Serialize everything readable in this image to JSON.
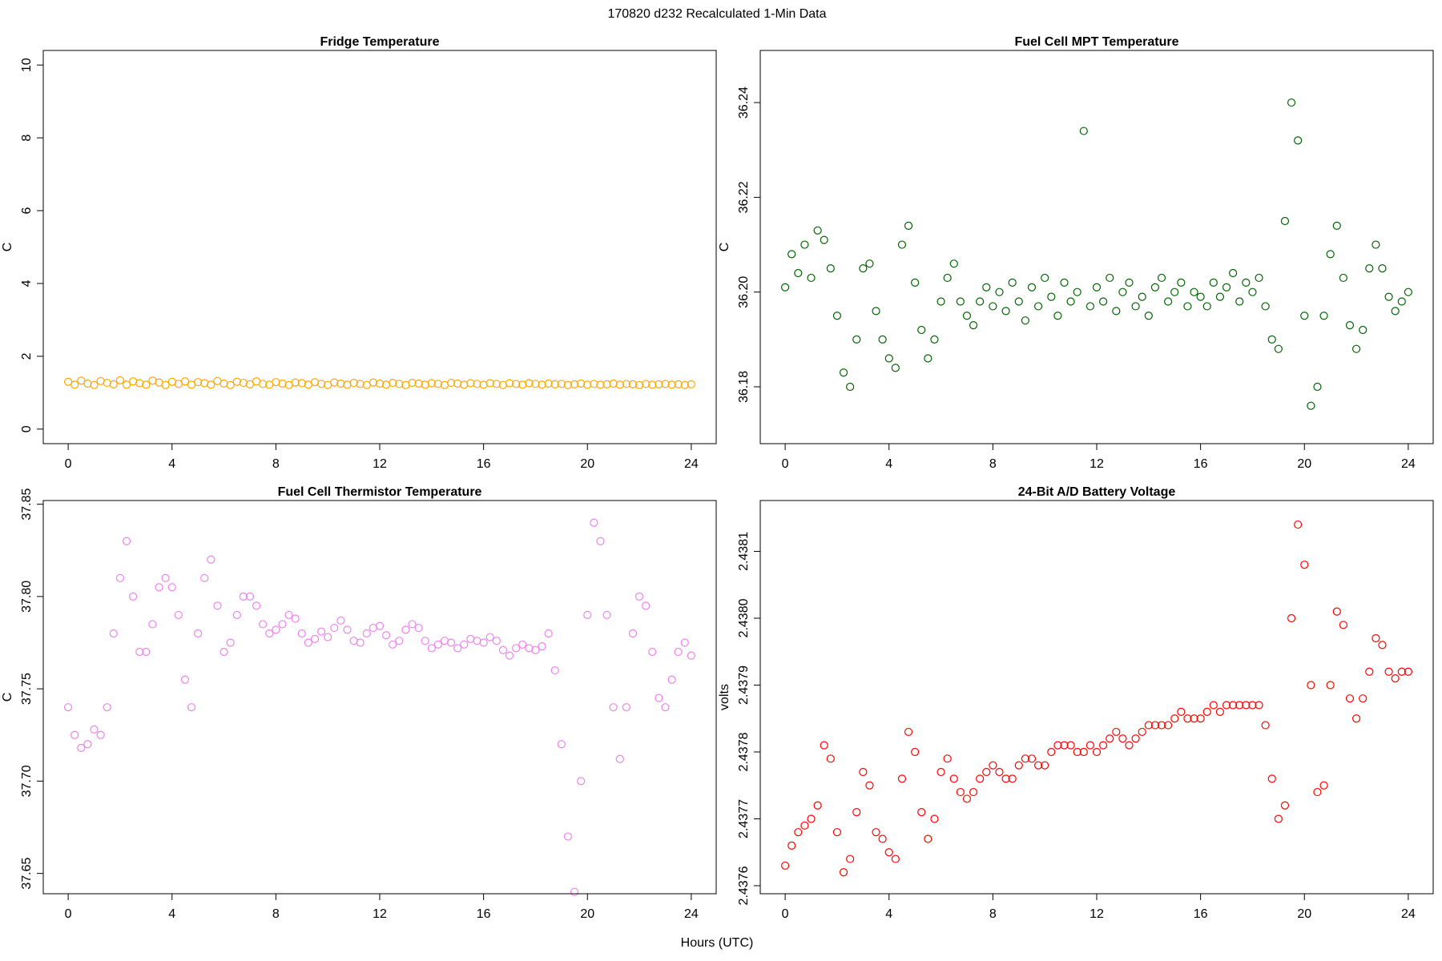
{
  "title": "170820   d232   Recalculated 1-Min Data",
  "xlabel": "Hours (UTC)",
  "chart_data": [
    {
      "type": "scatter",
      "title": "Fridge Temperature",
      "ylabel": "C",
      "color": "#FFA500",
      "xlim": [
        -0.96,
        24.96
      ],
      "xticks": [
        0,
        4,
        8,
        12,
        16,
        20,
        24
      ],
      "ylim": [
        -0.4,
        10.4
      ],
      "yticks": [
        0,
        2,
        4,
        6,
        8,
        10
      ],
      "x": [
        0,
        0.25,
        0.5,
        0.75,
        1,
        1.25,
        1.5,
        1.75,
        2,
        2.25,
        2.5,
        2.75,
        3,
        3.25,
        3.5,
        3.75,
        4,
        4.25,
        4.5,
        4.75,
        5,
        5.25,
        5.5,
        5.75,
        6,
        6.25,
        6.5,
        6.75,
        7,
        7.25,
        7.5,
        7.75,
        8,
        8.25,
        8.5,
        8.75,
        9,
        9.25,
        9.5,
        9.75,
        10,
        10.25,
        10.5,
        10.75,
        11,
        11.25,
        11.5,
        11.75,
        12,
        12.25,
        12.5,
        12.75,
        13,
        13.25,
        13.5,
        13.75,
        14,
        14.25,
        14.5,
        14.75,
        15,
        15.25,
        15.5,
        15.75,
        16,
        16.25,
        16.5,
        16.75,
        17,
        17.25,
        17.5,
        17.75,
        18,
        18.25,
        18.5,
        18.75,
        19,
        19.25,
        19.5,
        19.75,
        20,
        20.25,
        20.5,
        20.75,
        21,
        21.25,
        21.5,
        21.75,
        22,
        22.25,
        22.5,
        22.75,
        23,
        23.25,
        23.5,
        23.75,
        24
      ],
      "values": [
        1.3,
        1.22,
        1.33,
        1.25,
        1.21,
        1.32,
        1.27,
        1.23,
        1.34,
        1.22,
        1.31,
        1.26,
        1.22,
        1.33,
        1.28,
        1.21,
        1.3,
        1.24,
        1.31,
        1.22,
        1.29,
        1.26,
        1.22,
        1.32,
        1.25,
        1.21,
        1.3,
        1.27,
        1.23,
        1.31,
        1.24,
        1.22,
        1.29,
        1.25,
        1.21,
        1.28,
        1.26,
        1.22,
        1.29,
        1.24,
        1.21,
        1.28,
        1.25,
        1.22,
        1.27,
        1.24,
        1.21,
        1.28,
        1.25,
        1.22,
        1.27,
        1.24,
        1.21,
        1.27,
        1.25,
        1.22,
        1.26,
        1.24,
        1.21,
        1.27,
        1.25,
        1.22,
        1.26,
        1.24,
        1.22,
        1.26,
        1.24,
        1.21,
        1.26,
        1.24,
        1.22,
        1.26,
        1.24,
        1.22,
        1.25,
        1.23,
        1.24,
        1.21,
        1.23,
        1.25,
        1.22,
        1.24,
        1.22,
        1.23,
        1.25,
        1.22,
        1.24,
        1.23,
        1.21,
        1.24,
        1.22,
        1.23,
        1.24,
        1.22,
        1.23,
        1.21,
        1.23
      ]
    },
    {
      "type": "scatter",
      "title": "Fuel Cell MPT Temperature",
      "ylabel": "C",
      "color": "#006400",
      "xlim": [
        -0.96,
        24.96
      ],
      "xticks": [
        0,
        4,
        8,
        12,
        16,
        20,
        24
      ],
      "ylim": [
        36.168,
        36.251
      ],
      "yticks": [
        36.18,
        {
          "value": 36.2,
          "label": "36.20"
        },
        36.22,
        36.24
      ],
      "x": [
        0,
        0.25,
        0.5,
        0.75,
        1,
        1.25,
        1.5,
        1.75,
        2,
        2.25,
        2.5,
        2.75,
        3,
        3.25,
        3.5,
        3.75,
        4,
        4.25,
        4.5,
        4.75,
        5,
        5.25,
        5.5,
        5.75,
        6,
        6.25,
        6.5,
        6.75,
        7,
        7.25,
        7.5,
        7.75,
        8,
        8.25,
        8.5,
        8.75,
        9,
        9.25,
        9.5,
        9.75,
        10,
        10.25,
        10.5,
        10.75,
        11,
        11.25,
        11.5,
        11.75,
        12,
        12.25,
        12.5,
        12.75,
        13,
        13.25,
        13.5,
        13.75,
        14,
        14.25,
        14.5,
        14.75,
        15,
        15.25,
        15.5,
        15.75,
        16,
        16.25,
        16.5,
        16.75,
        17,
        17.25,
        17.5,
        17.75,
        18,
        18.25,
        18.5,
        18.75,
        19,
        19.25,
        19.5,
        19.75,
        20,
        20.25,
        20.5,
        20.75,
        21,
        21.25,
        21.5,
        21.75,
        22,
        22.25,
        22.5,
        22.75,
        23,
        23.25,
        23.5,
        23.75,
        24
      ],
      "values": [
        36.201,
        36.208,
        36.204,
        36.21,
        36.203,
        36.213,
        36.211,
        36.205,
        36.195,
        36.183,
        36.18,
        36.19,
        36.205,
        36.206,
        36.196,
        36.19,
        36.186,
        36.184,
        36.21,
        36.214,
        36.202,
        36.192,
        36.186,
        36.19,
        36.198,
        36.203,
        36.206,
        36.198,
        36.195,
        36.193,
        36.198,
        36.201,
        36.197,
        36.2,
        36.196,
        36.202,
        36.198,
        36.194,
        36.201,
        36.197,
        36.203,
        36.199,
        36.195,
        36.202,
        36.198,
        36.2,
        36.234,
        36.197,
        36.201,
        36.198,
        36.203,
        36.196,
        36.2,
        36.202,
        36.197,
        36.199,
        36.195,
        36.201,
        36.203,
        36.198,
        36.2,
        36.202,
        36.197,
        36.2,
        36.199,
        36.197,
        36.202,
        36.199,
        36.201,
        36.204,
        36.198,
        36.202,
        36.2,
        36.203,
        36.197,
        36.19,
        36.188,
        36.215,
        36.24,
        36.232,
        36.195,
        36.176,
        36.18,
        36.195,
        36.208,
        36.214,
        36.203,
        36.193,
        36.188,
        36.192,
        36.205,
        36.21,
        36.205,
        36.199,
        36.196,
        36.198,
        36.2
      ]
    },
    {
      "type": "scatter",
      "title": "Fuel Cell Thermistor Temperature",
      "ylabel": "C",
      "color": "#EE82EE",
      "xlim": [
        -0.96,
        24.96
      ],
      "xticks": [
        0,
        4,
        8,
        12,
        16,
        20,
        24
      ],
      "ylim": [
        37.639,
        37.852
      ],
      "yticks": [
        37.65,
        {
          "value": 37.7,
          "label": "37.70"
        },
        37.75,
        {
          "value": 37.8,
          "label": "37.80"
        },
        37.85
      ],
      "x": [
        0,
        0.25,
        0.5,
        0.75,
        1,
        1.25,
        1.5,
        1.75,
        2,
        2.25,
        2.5,
        2.75,
        3,
        3.25,
        3.5,
        3.75,
        4,
        4.25,
        4.5,
        4.75,
        5,
        5.25,
        5.5,
        5.75,
        6,
        6.25,
        6.5,
        6.75,
        7,
        7.25,
        7.5,
        7.75,
        8,
        8.25,
        8.5,
        8.75,
        9,
        9.25,
        9.5,
        9.75,
        10,
        10.25,
        10.5,
        10.75,
        11,
        11.25,
        11.5,
        11.75,
        12,
        12.25,
        12.5,
        12.75,
        13,
        13.25,
        13.5,
        13.75,
        14,
        14.25,
        14.5,
        14.75,
        15,
        15.25,
        15.5,
        15.75,
        16,
        16.25,
        16.5,
        16.75,
        17,
        17.25,
        17.5,
        17.75,
        18,
        18.25,
        18.5,
        18.75,
        19,
        19.25,
        19.5,
        19.75,
        20,
        20.25,
        20.5,
        20.75,
        21,
        21.25,
        21.5,
        21.75,
        22,
        22.25,
        22.5,
        22.75,
        23,
        23.25,
        23.5,
        23.75,
        24
      ],
      "values": [
        37.74,
        37.725,
        37.718,
        37.72,
        37.728,
        37.725,
        37.74,
        37.78,
        37.81,
        37.83,
        37.8,
        37.77,
        37.77,
        37.785,
        37.805,
        37.81,
        37.805,
        37.79,
        37.755,
        37.74,
        37.78,
        37.81,
        37.82,
        37.795,
        37.77,
        37.775,
        37.79,
        37.8,
        37.8,
        37.795,
        37.785,
        37.78,
        37.782,
        37.785,
        37.79,
        37.788,
        37.78,
        37.775,
        37.777,
        37.781,
        37.778,
        37.783,
        37.787,
        37.782,
        37.776,
        37.775,
        37.78,
        37.783,
        37.784,
        37.779,
        37.774,
        37.776,
        37.782,
        37.785,
        37.783,
        37.776,
        37.772,
        37.774,
        37.776,
        37.775,
        37.772,
        37.774,
        37.777,
        37.776,
        37.775,
        37.778,
        37.776,
        37.771,
        37.768,
        37.772,
        37.774,
        37.772,
        37.771,
        37.773,
        37.78,
        37.76,
        37.72,
        37.67,
        37.64,
        37.7,
        37.79,
        37.84,
        37.83,
        37.79,
        37.74,
        37.712,
        37.74,
        37.78,
        37.8,
        37.795,
        37.77,
        37.745,
        37.74,
        37.755,
        37.77,
        37.775,
        37.768
      ]
    },
    {
      "type": "scatter",
      "title": "24-Bit A/D Battery Voltage",
      "ylabel": "volts",
      "color": "#FF0000",
      "xlim": [
        -0.96,
        24.96
      ],
      "xticks": [
        0,
        4,
        8,
        12,
        16,
        20,
        24
      ],
      "ylim": [
        2.437588,
        2.438176
      ],
      "yticks": [
        2.4376,
        2.4377,
        2.4378,
        2.4379,
        {
          "value": 2.438,
          "label": "2.4380"
        },
        2.4381
      ],
      "x": [
        0,
        0.25,
        0.5,
        0.75,
        1,
        1.25,
        1.5,
        1.75,
        2,
        2.25,
        2.5,
        2.75,
        3,
        3.25,
        3.5,
        3.75,
        4,
        4.25,
        4.5,
        4.75,
        5,
        5.25,
        5.5,
        5.75,
        6,
        6.25,
        6.5,
        6.75,
        7,
        7.25,
        7.5,
        7.75,
        8,
        8.25,
        8.5,
        8.75,
        9,
        9.25,
        9.5,
        9.75,
        10,
        10.25,
        10.5,
        10.75,
        11,
        11.25,
        11.5,
        11.75,
        12,
        12.25,
        12.5,
        12.75,
        13,
        13.25,
        13.5,
        13.75,
        14,
        14.25,
        14.5,
        14.75,
        15,
        15.25,
        15.5,
        15.75,
        16,
        16.25,
        16.5,
        16.75,
        17,
        17.25,
        17.5,
        17.75,
        18,
        18.25,
        18.5,
        18.75,
        19,
        19.25,
        19.5,
        19.75,
        20,
        20.25,
        20.5,
        20.75,
        21,
        21.25,
        21.5,
        21.75,
        22,
        22.25,
        22.5,
        22.75,
        23,
        23.25,
        23.5,
        23.75,
        24
      ],
      "values": [
        2.43763,
        2.43766,
        2.43768,
        2.43769,
        2.4377,
        2.43772,
        2.43781,
        2.43779,
        2.43768,
        2.43762,
        2.43764,
        2.43771,
        2.43777,
        2.43775,
        2.43768,
        2.43767,
        2.43765,
        2.43764,
        2.43776,
        2.43783,
        2.4378,
        2.43771,
        2.43767,
        2.4377,
        2.43777,
        2.43779,
        2.43776,
        2.43774,
        2.43773,
        2.43774,
        2.43776,
        2.43777,
        2.43778,
        2.43777,
        2.43776,
        2.43776,
        2.43778,
        2.43779,
        2.43779,
        2.43778,
        2.43778,
        2.4378,
        2.43781,
        2.43781,
        2.43781,
        2.4378,
        2.4378,
        2.43781,
        2.4378,
        2.43781,
        2.43782,
        2.43783,
        2.43782,
        2.43781,
        2.43782,
        2.43783,
        2.43784,
        2.43784,
        2.43784,
        2.43784,
        2.43785,
        2.43786,
        2.43785,
        2.43785,
        2.43785,
        2.43786,
        2.43787,
        2.43786,
        2.43787,
        2.43787,
        2.43787,
        2.43787,
        2.43787,
        2.43787,
        2.43784,
        2.43776,
        2.4377,
        2.43772,
        2.438,
        2.43814,
        2.43808,
        2.4379,
        2.43774,
        2.43775,
        2.4379,
        2.43801,
        2.43799,
        2.43788,
        2.43785,
        2.43788,
        2.43792,
        2.43797,
        2.43796,
        2.43792,
        2.43791,
        2.43792,
        2.43792
      ]
    }
  ]
}
